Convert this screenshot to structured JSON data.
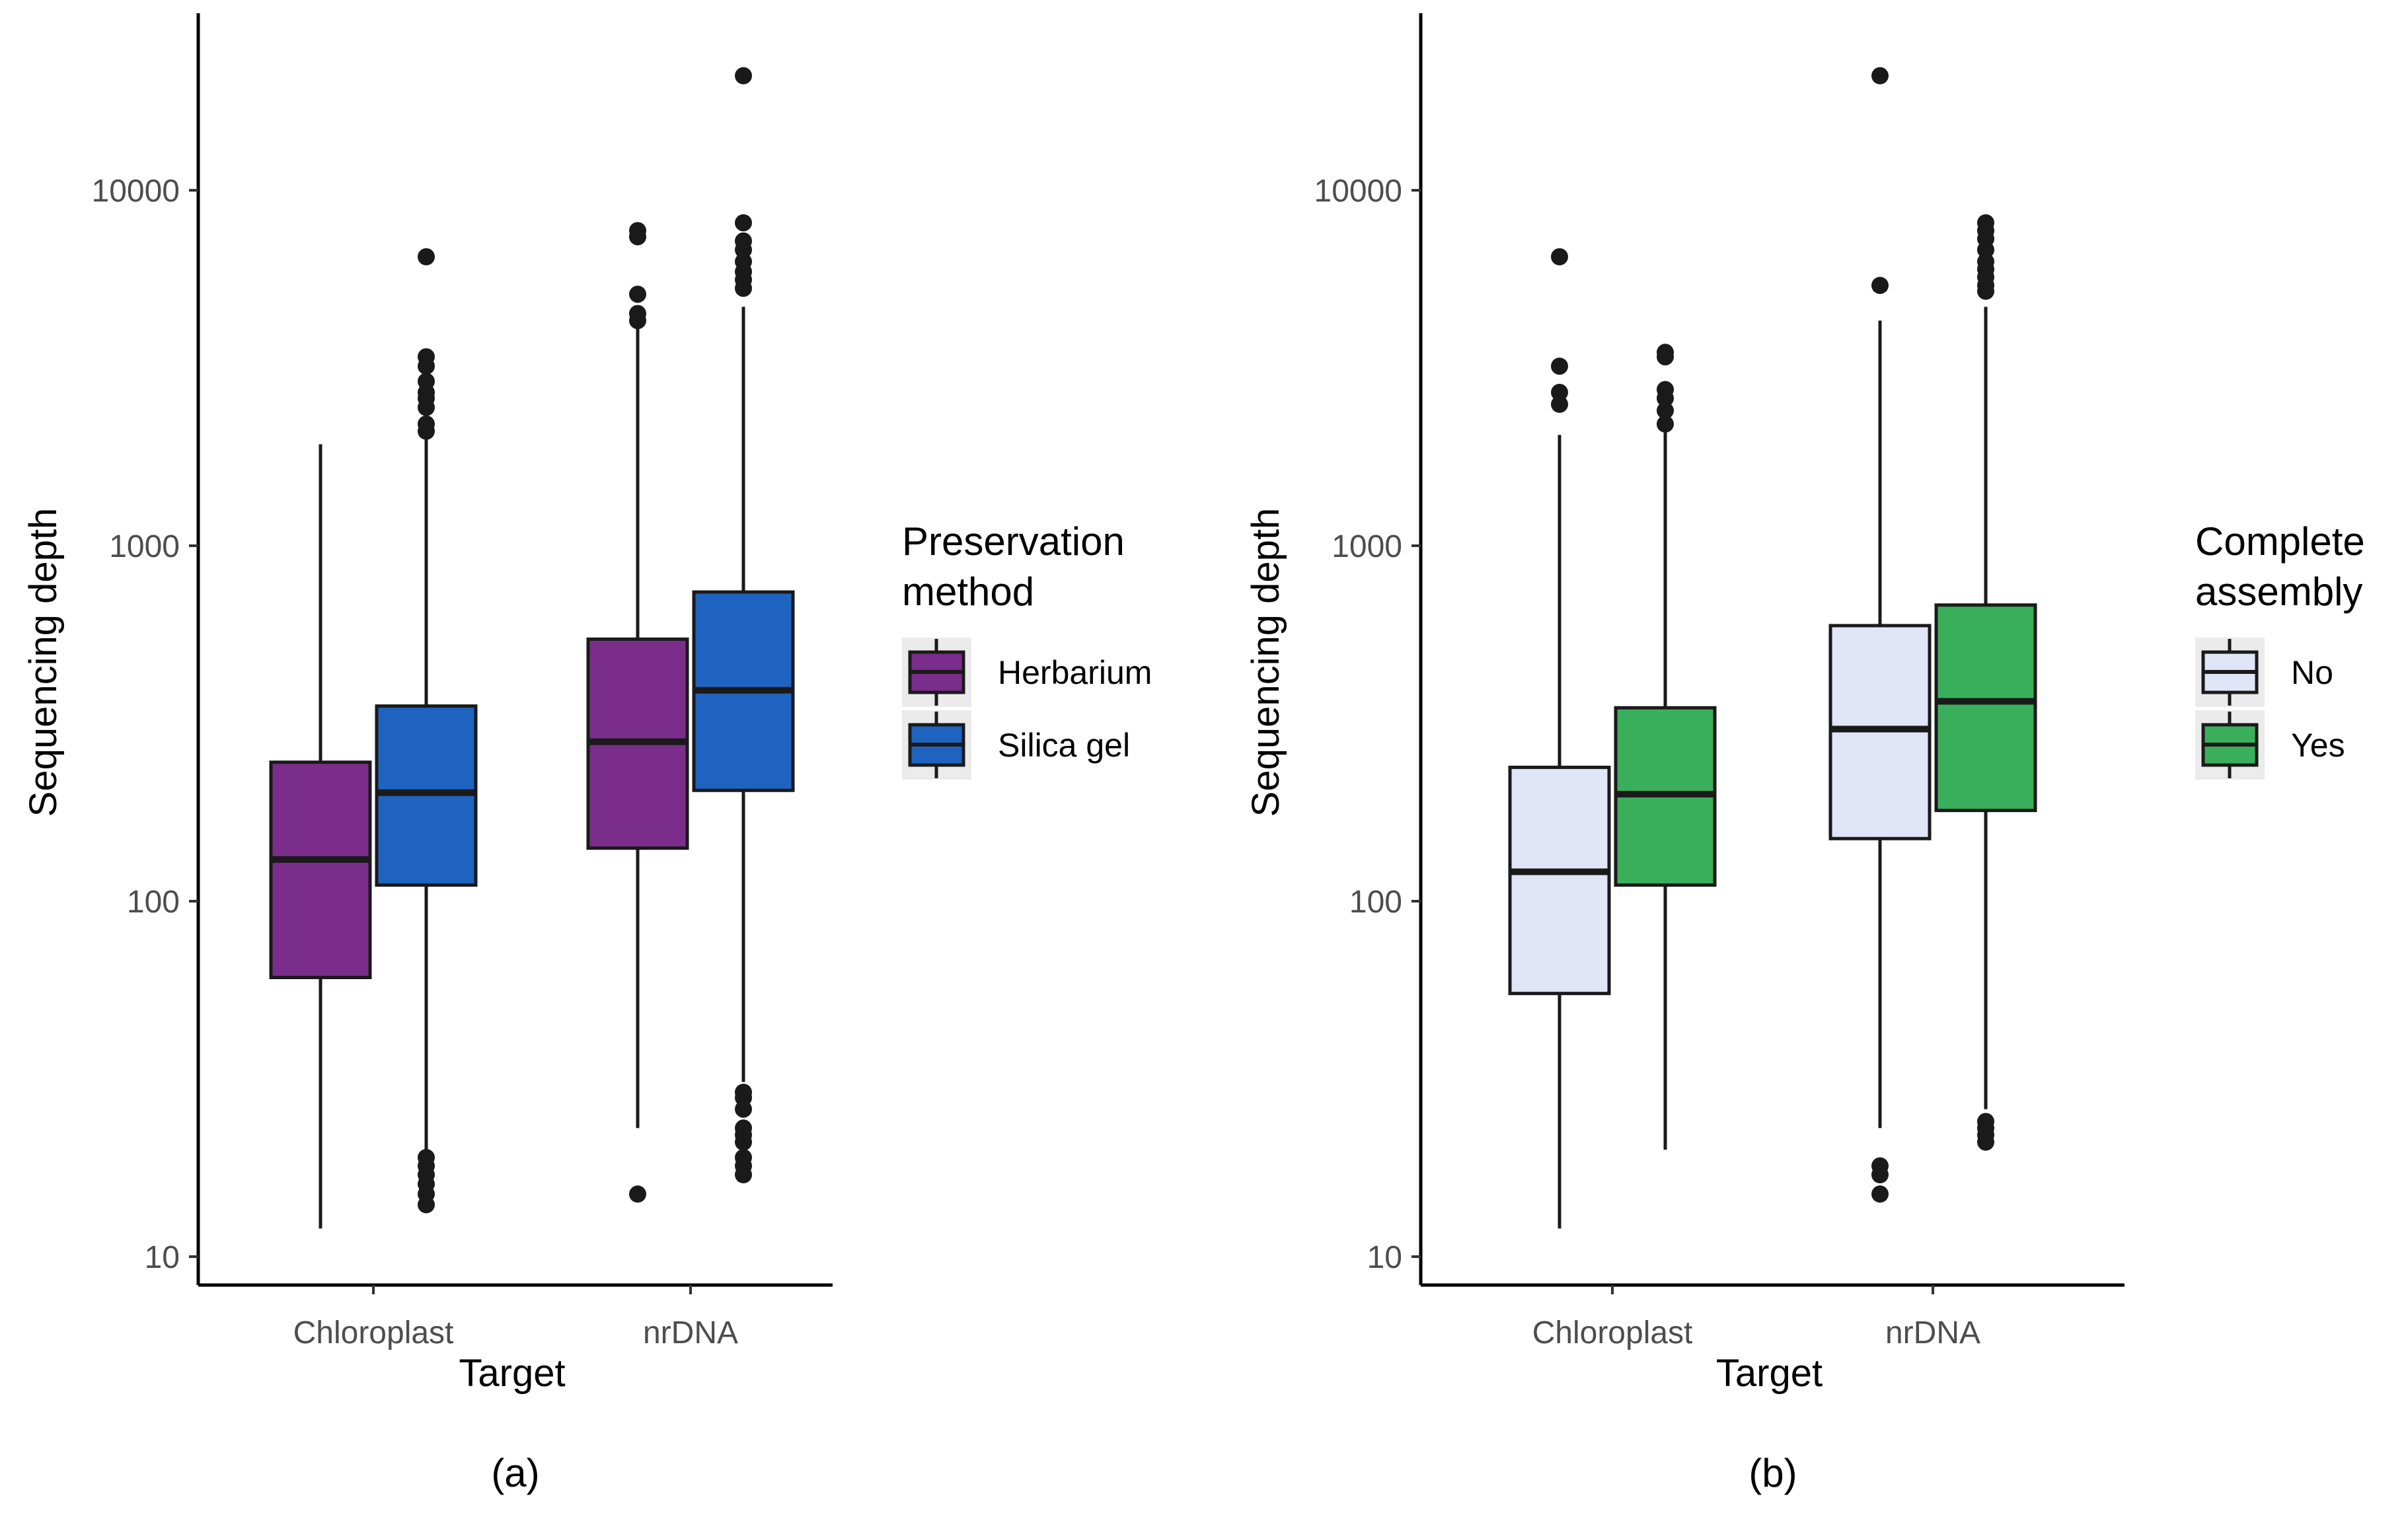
{
  "chart_data": [
    {
      "type": "box",
      "panel_label": "(a)",
      "xlabel": "Target",
      "ylabel": "Sequencing depth",
      "y_scale": "log10",
      "ylim": [
        9,
        28000
      ],
      "y_ticks": [
        {
          "value": 10,
          "label": "10"
        },
        {
          "value": 100,
          "label": "100"
        },
        {
          "value": 1000,
          "label": "1000"
        },
        {
          "value": 10000,
          "label": "10000"
        }
      ],
      "categories": [
        "Chloroplast",
        "nrDNA"
      ],
      "legend": {
        "title_lines": [
          "Preservation",
          "method"
        ],
        "entries": [
          {
            "label": "Herbarium",
            "color": "#7b2d8b"
          },
          {
            "label": "Silica gel",
            "color": "#1f63c1"
          }
        ]
      },
      "groups": [
        {
          "category": "Chloroplast",
          "boxes": [
            {
              "series": "Herbarium",
              "whisker_low": 12,
              "q1": 61,
              "median": 131,
              "q3": 246,
              "whisker_high": 1930,
              "outliers": []
            },
            {
              "series": "Silica gel",
              "whisker_low": 20,
              "q1": 111,
              "median": 202,
              "q3": 354,
              "whisker_high": 2050,
              "outliers": [
                6500,
                3400,
                3200,
                2900,
                2700,
                2600,
                2450,
                2200,
                2100,
                19,
                18,
                17,
                16,
                15,
                14
              ]
            }
          ]
        },
        {
          "category": "nrDNA",
          "boxes": [
            {
              "series": "Herbarium",
              "whisker_low": 23,
              "q1": 141,
              "median": 281,
              "q3": 546,
              "whisker_high": 4100,
              "outliers": [
                7700,
                7400,
                5100,
                4500,
                4300,
                15
              ]
            },
            {
              "series": "Silica gel",
              "whisker_low": 31,
              "q1": 205,
              "median": 392,
              "q3": 741,
              "whisker_high": 4700,
              "outliers": [
                21000,
                8100,
                7200,
                6800,
                6300,
                5900,
                5600,
                5300,
                29,
                28,
                26,
                23,
                22,
                21,
                19,
                18,
                17
              ]
            }
          ]
        }
      ]
    },
    {
      "type": "box",
      "panel_label": "(b)",
      "xlabel": "Target",
      "ylabel": "Sequencing depth",
      "y_scale": "log10",
      "ylim": [
        9,
        28000
      ],
      "y_ticks": [
        {
          "value": 10,
          "label": "10"
        },
        {
          "value": 100,
          "label": "100"
        },
        {
          "value": 1000,
          "label": "1000"
        },
        {
          "value": 10000,
          "label": "10000"
        }
      ],
      "categories": [
        "Chloroplast",
        "nrDNA"
      ],
      "legend": {
        "title_lines": [
          "Complete",
          "assembly"
        ],
        "entries": [
          {
            "label": "No",
            "color": "#e0e5f7"
          },
          {
            "label": "Yes",
            "color": "#3aaf5b"
          }
        ]
      },
      "groups": [
        {
          "category": "Chloroplast",
          "boxes": [
            {
              "series": "No",
              "whisker_low": 12,
              "q1": 55,
              "median": 121,
              "q3": 238,
              "whisker_high": 2050,
              "outliers": [
                6500,
                3200,
                2700,
                2500
              ]
            },
            {
              "series": "Yes",
              "whisker_low": 20,
              "q1": 111,
              "median": 200,
              "q3": 350,
              "whisker_high": 2100,
              "outliers": [
                3500,
                3400,
                2750,
                2600,
                2400,
                2200
              ]
            }
          ]
        },
        {
          "category": "nrDNA",
          "boxes": [
            {
              "series": "No",
              "whisker_low": 23,
              "q1": 150,
              "median": 305,
              "q3": 596,
              "whisker_high": 4300,
              "outliers": [
                21000,
                5400,
                18,
                17,
                15
              ]
            },
            {
              "series": "Yes",
              "whisker_low": 26,
              "q1": 180,
              "median": 365,
              "q3": 681,
              "whisker_high": 4700,
              "outliers": [
                8100,
                7700,
                7300,
                6800,
                6300,
                6000,
                5700,
                5400,
                5200,
                24,
                23,
                22,
                21
              ]
            }
          ]
        }
      ]
    }
  ]
}
